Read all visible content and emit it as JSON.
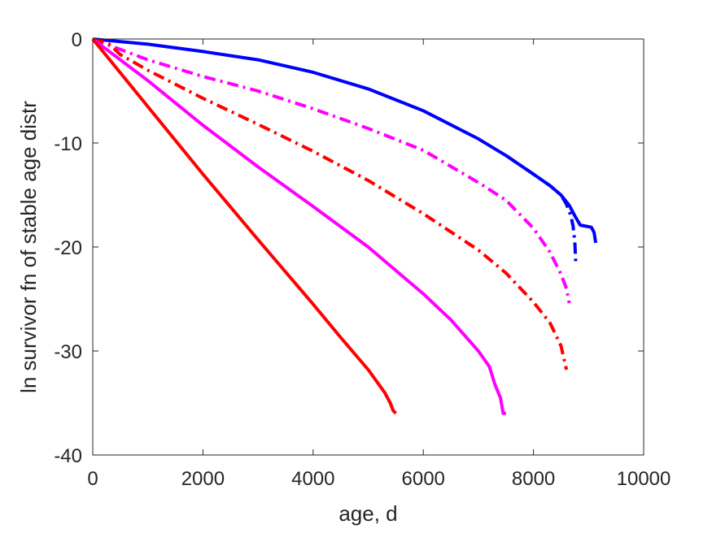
{
  "chart_data": {
    "type": "line",
    "title": "",
    "xlabel": "age, d",
    "ylabel": "ln survivor fn of stable age distr",
    "xlim": [
      0,
      10000
    ],
    "ylim": [
      -40,
      0
    ],
    "xticks": [
      0,
      2000,
      4000,
      6000,
      8000,
      10000
    ],
    "yticks": [
      -40,
      -30,
      -20,
      -10,
      0
    ],
    "xtick_labels": [
      "0",
      "2000",
      "4000",
      "6000",
      "8000",
      "10000"
    ],
    "ytick_labels": [
      "-40",
      "-30",
      "-20",
      "-10",
      "0"
    ],
    "grid": false,
    "legend": "none",
    "series": [
      {
        "color": "#0000ff",
        "style": "solid",
        "x": [
          0,
          1000,
          2000,
          3000,
          4000,
          5000,
          6000,
          7000,
          7500,
          8000,
          8300,
          8500,
          8650,
          8750,
          8850,
          8950,
          9050,
          9100,
          9130
        ],
        "y": [
          0,
          -0.5,
          -1.2,
          -2.0,
          -3.2,
          -4.8,
          -6.9,
          -9.6,
          -11.2,
          -13.0,
          -14.1,
          -15.0,
          -16.0,
          -17.0,
          -17.9,
          -18.0,
          -18.1,
          -18.6,
          -19.6
        ]
      },
      {
        "color": "#0000ff",
        "style": "dashdot",
        "x": [
          7500,
          8000,
          8300,
          8500,
          8600,
          8680,
          8720,
          8750,
          8770
        ],
        "y": [
          -11.2,
          -13.0,
          -14.1,
          -15.0,
          -15.9,
          -17.0,
          -18.0,
          -19.5,
          -21.7
        ]
      },
      {
        "color": "#ff00ff",
        "style": "dashdot",
        "x": [
          0,
          500,
          1000,
          2000,
          3000,
          4000,
          5000,
          6000,
          7000,
          7500,
          8000,
          8300,
          8500,
          8600,
          8650
        ],
        "y": [
          0,
          -1.0,
          -2.0,
          -3.6,
          -5.0,
          -6.7,
          -8.6,
          -10.7,
          -13.8,
          -15.5,
          -18.2,
          -20.5,
          -22.6,
          -24.0,
          -25.4
        ]
      },
      {
        "color": "#ff0000",
        "style": "dashdot",
        "x": [
          0,
          300,
          500,
          1000,
          2000,
          3000,
          4000,
          5000,
          6000,
          7000,
          7500,
          8000,
          8300,
          8500,
          8600
        ],
        "y": [
          0,
          -0.5,
          -1.5,
          -3.0,
          -5.7,
          -8.2,
          -10.8,
          -13.6,
          -16.8,
          -20.3,
          -22.5,
          -25.3,
          -27.3,
          -29.5,
          -31.8
        ]
      },
      {
        "color": "#ff00ff",
        "style": "solid",
        "x": [
          0,
          1000,
          2000,
          3000,
          4000,
          5000,
          6000,
          6500,
          7000,
          7200,
          7300,
          7400,
          7450,
          7500
        ],
        "y": [
          0,
          -4.0,
          -8.3,
          -12.3,
          -16.1,
          -20.0,
          -24.5,
          -27.0,
          -30.0,
          -31.5,
          -33.2,
          -34.5,
          -36.0,
          -36.0
        ]
      },
      {
        "color": "#ff0000",
        "style": "solid",
        "x": [
          0,
          1000,
          2000,
          3000,
          4000,
          4500,
          5000,
          5300,
          5400,
          5450,
          5500
        ],
        "y": [
          0,
          -6.5,
          -13.0,
          -19.3,
          -25.5,
          -28.7,
          -31.8,
          -34.0,
          -35.0,
          -35.7,
          -36.0
        ]
      }
    ]
  }
}
